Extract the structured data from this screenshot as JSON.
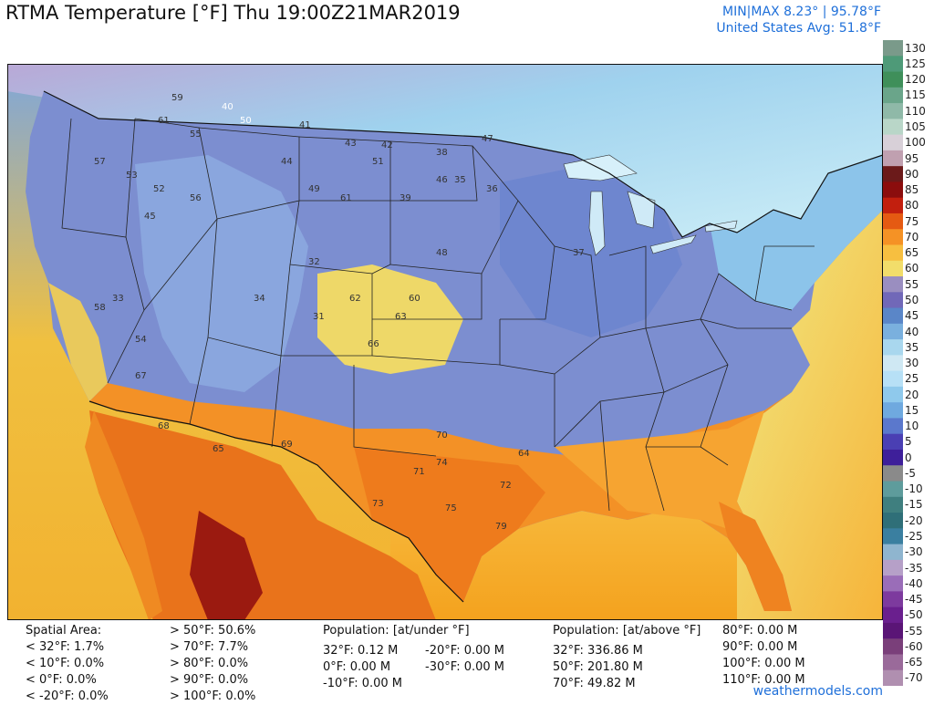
{
  "title": "RTMA Temperature [°F]  Thu 19:00Z21MAR2019",
  "stats": {
    "minmax": "MIN|MAX 8.23°  |  95.78°F",
    "avg": "United States Avg: 51.8°F"
  },
  "legend": {
    "labels": [
      "130",
      "125",
      "120",
      "115",
      "110",
      "105",
      "100",
      "95",
      "90",
      "85",
      "80",
      "75",
      "70",
      "65",
      "60",
      "55",
      "50",
      "45",
      "40",
      "35",
      "30",
      "25",
      "20",
      "15",
      "10",
      "5",
      "0",
      "-5",
      "-10",
      "-15",
      "-20",
      "-25",
      "-30",
      "-35",
      "-40",
      "-45",
      "-50",
      "-55",
      "-60",
      "-65",
      "-70"
    ],
    "colors": [
      "#7a9a8a",
      "#4e9a78",
      "#3f8f5a",
      "#6aa58a",
      "#8fb9a8",
      "#b9d6c8",
      "#d8d0d8",
      "#c0a0b0",
      "#6b1a1a",
      "#8b0d0d",
      "#c21f0e",
      "#e55a12",
      "#f59225",
      "#f7bf40",
      "#f2dd6a",
      "#9a8ec0",
      "#7168b8",
      "#5a86c8",
      "#7ab0de",
      "#a9d7ee",
      "#cfe8f3",
      "#b7e0f6",
      "#8fc9ec",
      "#6fa9df",
      "#5b78cc",
      "#4a3fb3",
      "#3e1f9a",
      "#8a8a8a",
      "#5e9c9c",
      "#3f7f7f",
      "#2f6f78",
      "#3a7fa0",
      "#8fb5cf",
      "#b6a0c8",
      "#9a6db8",
      "#7d3a9e",
      "#6a1f8e",
      "#5a1576",
      "#7a3f7a",
      "#9a6a9a",
      "#b08fb0"
    ]
  },
  "footer": {
    "spatial_title": "Spatial Area:",
    "spatial_left": [
      "< 32°F: 1.7%",
      "< 10°F: 0.0%",
      "< 0°F: 0.0%",
      "< -20°F: 0.0%"
    ],
    "spatial_right": [
      "> 50°F: 50.6%",
      "> 70°F: 7.7%",
      "> 80°F: 0.0%",
      "> 90°F: 0.0%",
      "> 100°F: 0.0%"
    ],
    "pop_under_title": "Population: [at/under °F]",
    "pop_under_1": [
      "32°F: 0.12 M",
      "0°F: 0.00 M",
      "-10°F: 0.00 M"
    ],
    "pop_under_2": [
      "-20°F: 0.00 M",
      "-30°F: 0.00 M"
    ],
    "pop_above_title": "Population: [at/above °F]",
    "pop_above_1": [
      "32°F: 336.86 M",
      "50°F: 201.80 M",
      "70°F: 49.82 M"
    ],
    "pop_above_2": [
      "80°F: 0.00 M",
      "90°F: 0.00 M",
      "100°F: 0.00 M",
      "110°F: 0.00 M"
    ],
    "site": "weathermodels.com"
  },
  "colors": {
    "accent_blue": "#1e6fd9",
    "water": "#ffb400",
    "canada": "#bfe6f2",
    "mexico": "#e8741a"
  },
  "station_values": [
    {
      "v": "59",
      "c": "#333"
    },
    {
      "v": "61",
      "c": "#333"
    },
    {
      "v": "55",
      "c": "#333"
    },
    {
      "v": "50",
      "c": "#fff"
    },
    {
      "v": "40",
      "c": "#fff"
    },
    {
      "v": "41",
      "c": "#333"
    },
    {
      "v": "43",
      "c": "#333"
    },
    {
      "v": "42",
      "c": "#333"
    },
    {
      "v": "51",
      "c": "#333"
    },
    {
      "v": "38",
      "c": "#333"
    },
    {
      "v": "47",
      "c": "#333"
    },
    {
      "v": "46",
      "c": "#333"
    },
    {
      "v": "53",
      "c": "#333"
    },
    {
      "v": "57",
      "c": "#333"
    },
    {
      "v": "45",
      "c": "#333"
    },
    {
      "v": "52",
      "c": "#333"
    },
    {
      "v": "56",
      "c": "#333"
    },
    {
      "v": "44",
      "c": "#333"
    },
    {
      "v": "61",
      "c": "#333"
    },
    {
      "v": "39",
      "c": "#333"
    },
    {
      "v": "35",
      "c": "#333"
    },
    {
      "v": "48",
      "c": "#333"
    },
    {
      "v": "36",
      "c": "#333"
    },
    {
      "v": "49",
      "c": "#333"
    },
    {
      "v": "33",
      "c": "#333"
    },
    {
      "v": "58",
      "c": "#333"
    },
    {
      "v": "54",
      "c": "#333"
    },
    {
      "v": "34",
      "c": "#333"
    },
    {
      "v": "31",
      "c": "#333"
    },
    {
      "v": "60",
      "c": "#333"
    },
    {
      "v": "62",
      "c": "#333"
    },
    {
      "v": "63",
      "c": "#333"
    },
    {
      "v": "66",
      "c": "#333"
    },
    {
      "v": "67",
      "c": "#333"
    },
    {
      "v": "68",
      "c": "#333"
    },
    {
      "v": "65",
      "c": "#333"
    },
    {
      "v": "69",
      "c": "#333"
    },
    {
      "v": "70",
      "c": "#333"
    },
    {
      "v": "71",
      "c": "#333"
    },
    {
      "v": "72",
      "c": "#333"
    },
    {
      "v": "73",
      "c": "#333"
    },
    {
      "v": "74",
      "c": "#333"
    },
    {
      "v": "75",
      "c": "#333"
    },
    {
      "v": "79",
      "c": "#333"
    },
    {
      "v": "64",
      "c": "#333"
    },
    {
      "v": "37",
      "c": "#333"
    },
    {
      "v": "32",
      "c": "#333"
    }
  ]
}
